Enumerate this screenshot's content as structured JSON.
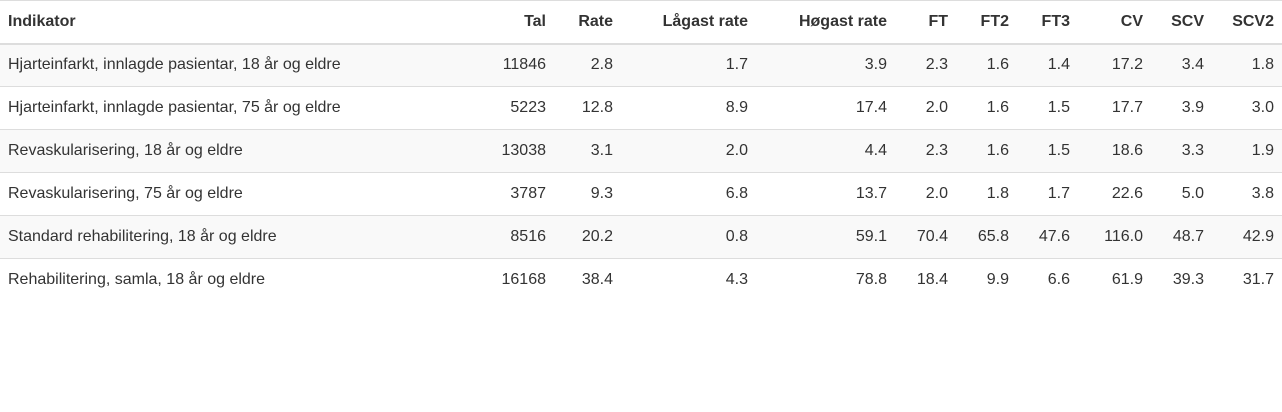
{
  "table": {
    "headers": [
      "Indikator",
      "Tal",
      "Rate",
      "Lågast rate",
      "Høgast rate",
      "FT",
      "FT2",
      "FT3",
      "CV",
      "SCV",
      "SCV2"
    ],
    "rows": [
      [
        "Hjarteinfarkt, innlagde pasientar, 18 år og eldre",
        "11846",
        "2.8",
        "1.7",
        "3.9",
        "2.3",
        "1.6",
        "1.4",
        "17.2",
        "3.4",
        "1.8"
      ],
      [
        "Hjarteinfarkt, innlagde pasientar, 75 år og eldre",
        "5223",
        "12.8",
        "8.9",
        "17.4",
        "2.0",
        "1.6",
        "1.5",
        "17.7",
        "3.9",
        "3.0"
      ],
      [
        "Revaskularisering, 18 år og eldre",
        "13038",
        "3.1",
        "2.0",
        "4.4",
        "2.3",
        "1.6",
        "1.5",
        "18.6",
        "3.3",
        "1.9"
      ],
      [
        "Revaskularisering, 75 år og eldre",
        "3787",
        "9.3",
        "6.8",
        "13.7",
        "2.0",
        "1.8",
        "1.7",
        "22.6",
        "5.0",
        "3.8"
      ],
      [
        "Standard rehabilitering, 18 år og eldre",
        "8516",
        "20.2",
        "0.8",
        "59.1",
        "70.4",
        "65.8",
        "47.6",
        "116.0",
        "48.7",
        "42.9"
      ],
      [
        "Rehabilitering, samla, 18 år og eldre",
        "16168",
        "38.4",
        "4.3",
        "78.8",
        "18.4",
        "9.9",
        "6.6",
        "61.9",
        "39.3",
        "31.7"
      ]
    ]
  }
}
